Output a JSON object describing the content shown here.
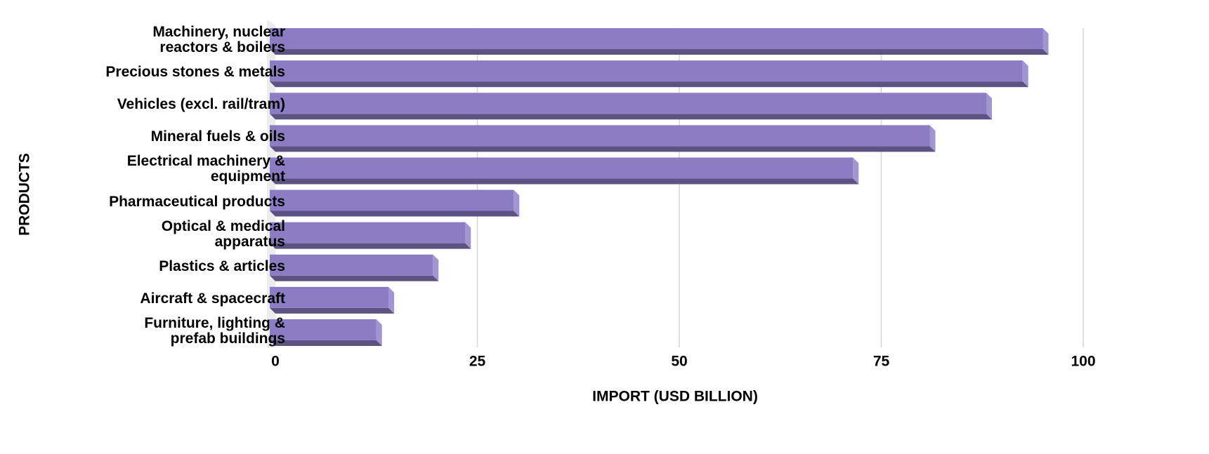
{
  "chart_data": {
    "type": "bar",
    "orientation": "horizontal",
    "categories": [
      "Machinery, nuclear\nreactors & boilers",
      "Precious stones & metals",
      "Vehicles (excl. rail/tram)",
      "Mineral fuels & oils",
      "Electrical machinery &\nequipment",
      "Pharmaceutical products",
      "Optical & medical\napparatus",
      "Plastics & articles",
      "Aircraft & spacecraft",
      "Furniture, lighting &\nprefab buildings"
    ],
    "values": [
      95,
      92.5,
      88,
      81,
      71.5,
      29.5,
      23.5,
      19.5,
      14,
      12.5
    ],
    "color": "#8b7cc4",
    "xlim": [
      0,
      100
    ],
    "xticks": [
      0,
      25,
      50,
      75,
      100
    ],
    "grid": true,
    "xlabel": "IMPORT (USD BILLION)",
    "ylabel": "PRODUCTS"
  }
}
